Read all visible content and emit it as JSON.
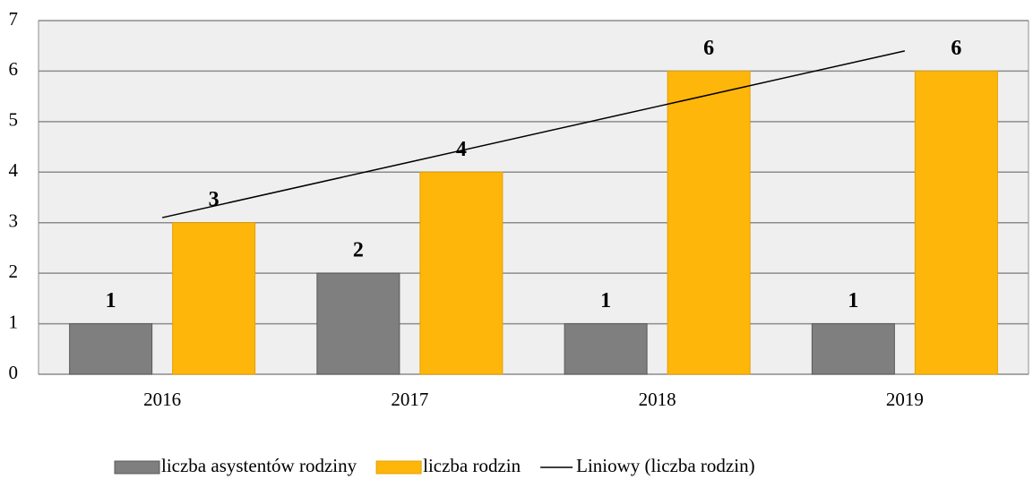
{
  "chart_data": {
    "type": "bar",
    "categories": [
      "2016",
      "2017",
      "2018",
      "2019"
    ],
    "series": [
      {
        "name": "liczba asystentów rodziny",
        "color": "#7f7f7f",
        "values": [
          1,
          2,
          1,
          1
        ]
      },
      {
        "name": "liczba rodzin",
        "color": "#ffb60a",
        "values": [
          3,
          4,
          6,
          6
        ]
      },
      {
        "name": "Liniowy (liczba rodzin)",
        "color": "#000000",
        "type": "line",
        "values": [
          3.1,
          4.2,
          5.3,
          6.4
        ]
      }
    ],
    "ylim": [
      0,
      7
    ],
    "yticks": [
      0,
      1,
      2,
      3,
      4,
      5,
      6,
      7
    ],
    "grid": true,
    "legend": "bottom"
  }
}
